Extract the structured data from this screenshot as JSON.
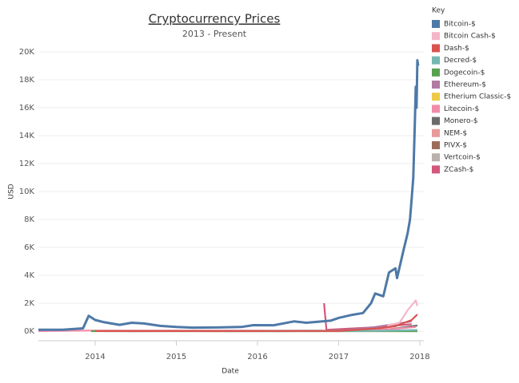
{
  "chart_data": {
    "type": "line",
    "title": "Cryptocurrency Prices",
    "subtitle": "2013 - Present",
    "x_label": "Date",
    "y_label": "USD",
    "legend_title": "Key",
    "legend_position": "right",
    "grid": true,
    "xlim": [
      2013.3,
      2018.05
    ],
    "xticks": [
      2014,
      2015,
      2016,
      2017,
      2018
    ],
    "ylim": [
      0,
      20000
    ],
    "yticks": [
      {
        "value": 0,
        "label": "0K"
      },
      {
        "value": 2000,
        "label": "2K"
      },
      {
        "value": 4000,
        "label": "4K"
      },
      {
        "value": 6000,
        "label": "6K"
      },
      {
        "value": 8000,
        "label": "8K"
      },
      {
        "value": 10000,
        "label": "10K"
      },
      {
        "value": 12000,
        "label": "12K"
      },
      {
        "value": 14000,
        "label": "14K"
      },
      {
        "value": 16000,
        "label": "16K"
      },
      {
        "value": 18000,
        "label": "18K"
      },
      {
        "value": 20000,
        "label": "20K"
      }
    ],
    "series": [
      {
        "name": "Bitcoin-$",
        "color": "#4e79a7",
        "x": [
          2013.3,
          2013.6,
          2013.85,
          2013.92,
          2014.0,
          2014.1,
          2014.3,
          2014.45,
          2014.6,
          2014.8,
          2015.0,
          2015.2,
          2015.5,
          2015.8,
          2015.95,
          2016.2,
          2016.45,
          2016.6,
          2016.9,
          2017.0,
          2017.15,
          2017.3,
          2017.4,
          2017.45,
          2017.55,
          2017.62,
          2017.7,
          2017.72,
          2017.8,
          2017.85,
          2017.88,
          2017.9,
          2017.92,
          2017.94,
          2017.95,
          2017.96,
          2017.97,
          2017.98
        ],
        "values": [
          100,
          100,
          200,
          1100,
          800,
          650,
          450,
          600,
          550,
          380,
          300,
          250,
          260,
          300,
          430,
          420,
          700,
          600,
          750,
          950,
          1150,
          1300,
          2000,
          2700,
          2500,
          4200,
          4500,
          3800,
          5800,
          7000,
          8000,
          9500,
          11000,
          15000,
          17500,
          16000,
          19400,
          19000
        ]
      },
      {
        "name": "Bitcoin Cash-$",
        "color": "#f4b6c9",
        "x": [
          2017.6,
          2017.75,
          2017.85,
          2017.95,
          2017.97
        ],
        "values": [
          400,
          600,
          1500,
          2200,
          1800
        ]
      },
      {
        "name": "Dash-$",
        "color": "#d9534f",
        "x": [
          2014.0,
          2016.5,
          2017.0,
          2017.5,
          2017.7,
          2017.9,
          2017.97
        ],
        "values": [
          5,
          10,
          12,
          200,
          350,
          800,
          1200
        ]
      },
      {
        "name": "Decred-$",
        "color": "#76b7b2",
        "x": [
          2016.1,
          2017.5,
          2017.97
        ],
        "values": [
          1,
          20,
          80
        ]
      },
      {
        "name": "Dogecoin-$",
        "color": "#59a14f",
        "x": [
          2013.95,
          2017.97
        ],
        "values": [
          0,
          0
        ]
      },
      {
        "name": "Ethereum-$",
        "color": "#b07aa1",
        "x": [
          2015.6,
          2017.0,
          2017.45,
          2017.9
        ],
        "values": [
          1,
          10,
          300,
          700
        ]
      },
      {
        "name": "Etherium Classic-$",
        "color": "#edc948",
        "x": [
          2016.6,
          2017.97
        ],
        "values": [
          1,
          30
        ]
      },
      {
        "name": "Litecoin-$",
        "color": "#f28ba8",
        "x": [
          2013.3,
          2013.92,
          2017.4,
          2017.95
        ],
        "values": [
          4,
          40,
          30,
          300
        ]
      },
      {
        "name": "Monero-$",
        "color": "#6b6b6b",
        "x": [
          2014.4,
          2017.5,
          2017.97
        ],
        "values": [
          1,
          40,
          400
        ]
      },
      {
        "name": "NEM-$",
        "color": "#e99a9a",
        "x": [
          2015.3,
          2017.97
        ],
        "values": [
          0,
          1
        ]
      },
      {
        "name": "PIVX-$",
        "color": "#9c6b5a",
        "x": [
          2016.2,
          2017.97
        ],
        "values": [
          0,
          10
        ]
      },
      {
        "name": "Vertcoin-$",
        "color": "#bab0ac",
        "x": [
          2014.1,
          2017.97
        ],
        "values": [
          0,
          8
        ]
      },
      {
        "name": "ZCash-$",
        "color": "#d3577b",
        "x": [
          2016.82,
          2016.85,
          2017.5,
          2017.9
        ],
        "values": [
          2000,
          100,
          300,
          500
        ]
      }
    ]
  }
}
